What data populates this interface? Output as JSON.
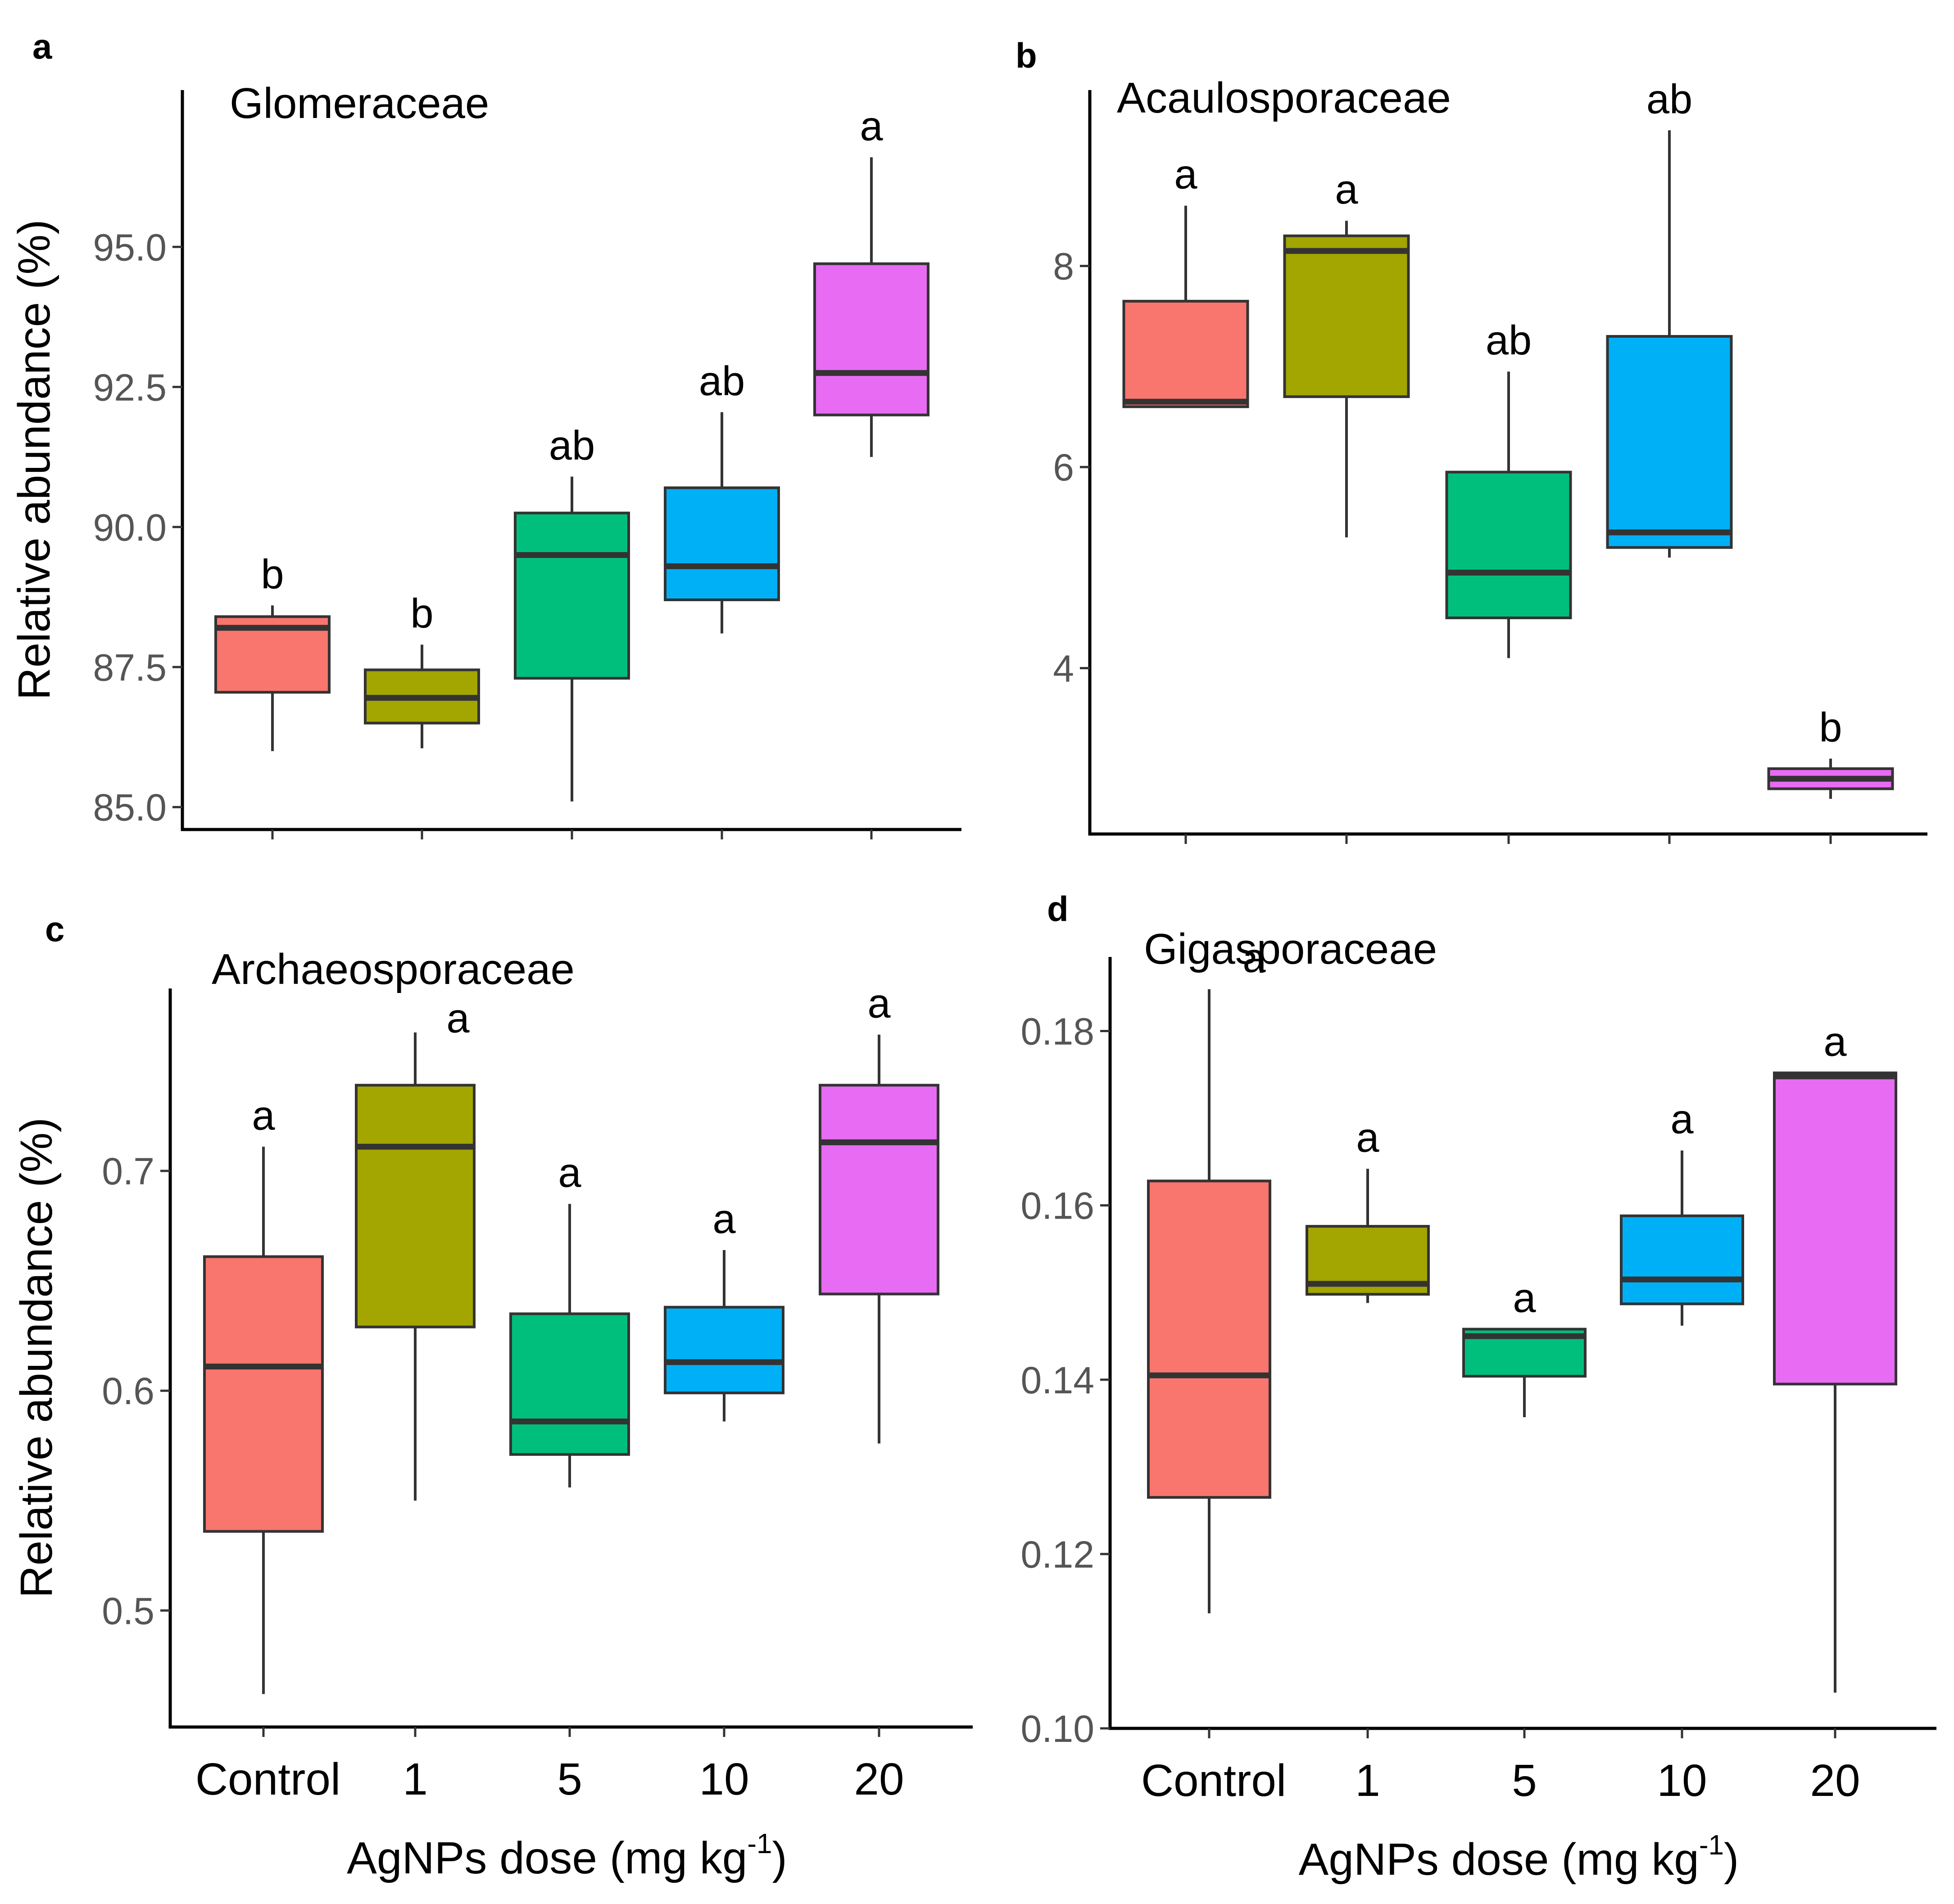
{
  "chart_data": [
    {
      "type": "box",
      "panel_letter": "a",
      "title": "Glomeraceae",
      "ylabel": "Relative abundance (%)",
      "xlabel": "",
      "categories": [
        "Control",
        "1",
        "5",
        "10",
        "20"
      ],
      "ylim": [
        84.6,
        97.8
      ],
      "yticks": [
        85.0,
        87.5,
        90.0,
        92.5,
        95.0
      ],
      "ytick_labels": [
        "85.0",
        "87.5",
        "90.0",
        "92.5",
        "95.0"
      ],
      "boxes": [
        {
          "min": 86.0,
          "q1": 87.05,
          "median": 88.2,
          "q3": 88.4,
          "max": 88.6,
          "letter": "b"
        },
        {
          "min": 86.05,
          "q1": 86.5,
          "median": 86.95,
          "q3": 87.45,
          "max": 87.9,
          "letter": "b"
        },
        {
          "min": 85.1,
          "q1": 87.3,
          "median": 89.5,
          "q3": 90.25,
          "max": 90.9,
          "letter": "ab"
        },
        {
          "min": 88.1,
          "q1": 88.7,
          "median": 89.3,
          "q3": 90.7,
          "max": 92.05,
          "letter": "ab"
        },
        {
          "min": 91.25,
          "q1": 92.0,
          "median": 92.75,
          "q3": 94.7,
          "max": 96.6,
          "letter": "a"
        }
      ]
    },
    {
      "type": "box",
      "panel_letter": "b",
      "title": "Acaulosporaceae",
      "ylabel": "",
      "xlabel": "",
      "categories": [
        "Control",
        "1",
        "5",
        "10",
        "20"
      ],
      "ylim": [
        2.35,
        9.75
      ],
      "yticks": [
        4,
        6,
        8
      ],
      "ytick_labels": [
        "4",
        "6",
        "8"
      ],
      "boxes": [
        {
          "min": 6.6,
          "q1": 6.6,
          "median": 6.65,
          "q3": 7.65,
          "max": 8.6,
          "letter": "a"
        },
        {
          "min": 5.3,
          "q1": 6.7,
          "median": 8.15,
          "q3": 8.3,
          "max": 8.45,
          "letter": "a"
        },
        {
          "min": 4.1,
          "q1": 4.5,
          "median": 4.95,
          "q3": 5.95,
          "max": 6.95,
          "letter": "ab"
        },
        {
          "min": 5.1,
          "q1": 5.2,
          "median": 5.35,
          "q3": 7.3,
          "max": 9.35,
          "letter": "ab"
        },
        {
          "min": 2.7,
          "q1": 2.8,
          "median": 2.9,
          "q3": 3.0,
          "max": 3.1,
          "letter": "b"
        }
      ]
    },
    {
      "type": "box",
      "panel_letter": "c",
      "title": "Archaeosporaceae",
      "ylabel": "Relative abundance (%)",
      "xlabel": "AgNPs dose (mg kg",
      "xlabel_sup": "-1",
      "xlabel_end": ")",
      "categories": [
        "Control",
        "1",
        "5",
        "10",
        "20"
      ],
      "ylim": [
        0.447,
        0.783
      ],
      "yticks": [
        0.5,
        0.6,
        0.7
      ],
      "ytick_labels": [
        "0.5",
        "0.6",
        "0.7"
      ],
      "boxes": [
        {
          "min": 0.462,
          "q1": 0.536,
          "median": 0.611,
          "q3": 0.661,
          "max": 0.711,
          "letter": "a"
        },
        {
          "min": 0.55,
          "q1": 0.629,
          "median": 0.711,
          "q3": 0.739,
          "max": 0.763,
          "letter": "a"
        },
        {
          "min": 0.556,
          "q1": 0.571,
          "median": 0.586,
          "q3": 0.635,
          "max": 0.685,
          "letter": "a"
        },
        {
          "min": 0.586,
          "q1": 0.599,
          "median": 0.613,
          "q3": 0.638,
          "max": 0.664,
          "letter": "a"
        },
        {
          "min": 0.576,
          "q1": 0.644,
          "median": 0.713,
          "q3": 0.739,
          "max": 0.762,
          "letter": "a"
        }
      ]
    },
    {
      "type": "box",
      "panel_letter": "d",
      "title": "Gigasporaceae",
      "ylabel": "",
      "xlabel": "AgNPs dose (mg kg",
      "xlabel_sup": "-1",
      "xlabel_end": ")",
      "categories": [
        "Control",
        "1",
        "5",
        "10",
        "20"
      ],
      "ylim": [
        0.1,
        0.1885
      ],
      "yticks": [
        0.1,
        0.12,
        0.14,
        0.16,
        0.18
      ],
      "ytick_labels": [
        "0.10",
        "0.12",
        "0.14",
        "0.16",
        "0.18"
      ],
      "boxes": [
        {
          "min": 0.1132,
          "q1": 0.1265,
          "median": 0.1405,
          "q3": 0.1628,
          "max": 0.1848,
          "letter": "a"
        },
        {
          "min": 0.1488,
          "q1": 0.1498,
          "median": 0.151,
          "q3": 0.1576,
          "max": 0.1642,
          "letter": "a"
        },
        {
          "min": 0.1357,
          "q1": 0.1404,
          "median": 0.145,
          "q3": 0.1458,
          "max": 0.1458,
          "letter": "a"
        },
        {
          "min": 0.1462,
          "q1": 0.1487,
          "median": 0.1515,
          "q3": 0.1588,
          "max": 0.1663,
          "letter": "a"
        },
        {
          "min": 0.1041,
          "q1": 0.1395,
          "median": 0.1748,
          "q3": 0.1752,
          "max": 0.1752,
          "letter": "a"
        }
      ]
    }
  ],
  "colors": [
    "#F8766D",
    "#A3A500",
    "#00BF7D",
    "#00B0F6",
    "#E76BF3"
  ]
}
